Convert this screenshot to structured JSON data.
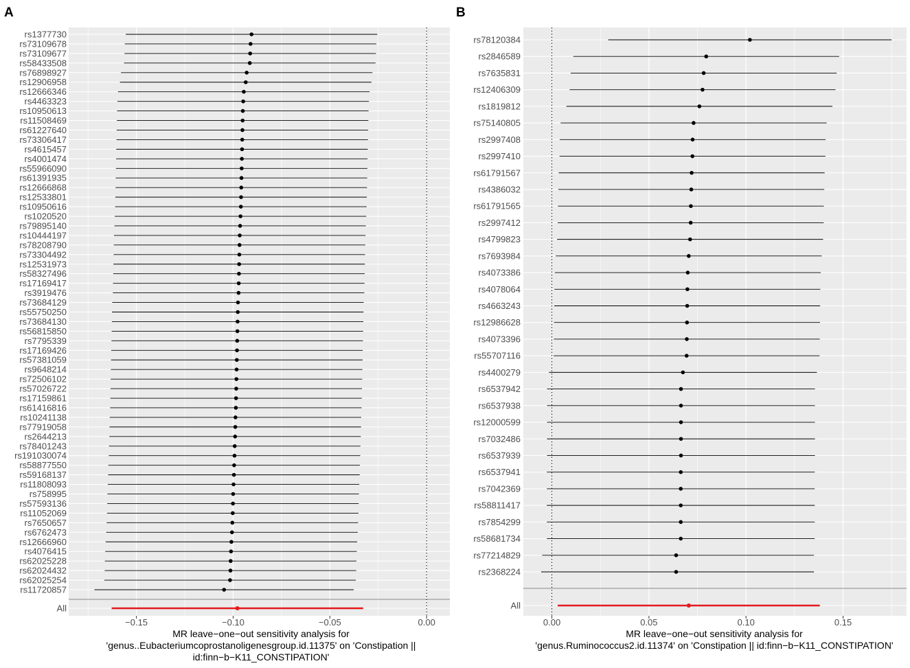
{
  "chart_data": [
    {
      "panel": "A",
      "type": "scatter",
      "xlabel": [
        "MR leave−one−out sensitivity analysis for",
        "'genus..Eubacteriumcoprostanoligenesgroup.id.11375' on 'Constipation ||",
        "id:finn−b−K11_CONSTIPATION'"
      ],
      "xlim": [
        -0.185,
        0.012
      ],
      "xticks": [
        -0.15,
        -0.1,
        -0.05,
        0.0
      ],
      "xtick_labels": [
        "−0.15",
        "−0.10",
        "−0.05",
        "0.00"
      ],
      "reference_line": 0,
      "grid": true,
      "snps": [
        {
          "label": "rs1377730",
          "est": -0.0905,
          "lo": -0.1555,
          "hi": -0.0255
        },
        {
          "label": "rs73109678",
          "est": -0.091,
          "lo": -0.156,
          "hi": -0.026
        },
        {
          "label": "rs73109677",
          "est": -0.0912,
          "lo": -0.1562,
          "hi": -0.0262
        },
        {
          "label": "rs58433508",
          "est": -0.0914,
          "lo": -0.1564,
          "hi": -0.0264
        },
        {
          "label": "rs76898927",
          "est": -0.093,
          "lo": -0.158,
          "hi": -0.028
        },
        {
          "label": "rs12906958",
          "est": -0.0935,
          "lo": -0.1585,
          "hi": -0.0285
        },
        {
          "label": "rs12666346",
          "est": -0.0945,
          "lo": -0.1595,
          "hi": -0.0295
        },
        {
          "label": "rs4463323",
          "est": -0.0948,
          "lo": -0.1598,
          "hi": -0.0298
        },
        {
          "label": "rs10950613",
          "est": -0.095,
          "lo": -0.16,
          "hi": -0.03
        },
        {
          "label": "rs11508469",
          "est": -0.0951,
          "lo": -0.1601,
          "hi": -0.0301
        },
        {
          "label": "rs61227640",
          "est": -0.0952,
          "lo": -0.1602,
          "hi": -0.0302
        },
        {
          "label": "rs73306417",
          "est": -0.0953,
          "lo": -0.1603,
          "hi": -0.0303
        },
        {
          "label": "rs4615457",
          "est": -0.0954,
          "lo": -0.1604,
          "hi": -0.0304
        },
        {
          "label": "rs4001474",
          "est": -0.0955,
          "lo": -0.1605,
          "hi": -0.0305
        },
        {
          "label": "rs55966090",
          "est": -0.0956,
          "lo": -0.1606,
          "hi": -0.0306
        },
        {
          "label": "rs61391935",
          "est": -0.0957,
          "lo": -0.1607,
          "hi": -0.0307
        },
        {
          "label": "rs12666868",
          "est": -0.0958,
          "lo": -0.1608,
          "hi": -0.0308
        },
        {
          "label": "rs12533801",
          "est": -0.0959,
          "lo": -0.1609,
          "hi": -0.0309
        },
        {
          "label": "rs10950616",
          "est": -0.096,
          "lo": -0.161,
          "hi": -0.031
        },
        {
          "label": "rs1020520",
          "est": -0.0962,
          "lo": -0.1612,
          "hi": -0.0312
        },
        {
          "label": "rs79895140",
          "est": -0.0964,
          "lo": -0.1614,
          "hi": -0.0314
        },
        {
          "label": "rs10444197",
          "est": -0.0966,
          "lo": -0.1616,
          "hi": -0.0316
        },
        {
          "label": "rs78208790",
          "est": -0.0967,
          "lo": -0.1617,
          "hi": -0.0317
        },
        {
          "label": "rs73304492",
          "est": -0.0968,
          "lo": -0.1618,
          "hi": -0.0318
        },
        {
          "label": "rs12531973",
          "est": -0.0969,
          "lo": -0.1619,
          "hi": -0.0319
        },
        {
          "label": "rs58327496",
          "est": -0.097,
          "lo": -0.162,
          "hi": -0.032
        },
        {
          "label": "rs17169417",
          "est": -0.0971,
          "lo": -0.1621,
          "hi": -0.0321
        },
        {
          "label": "rs3919476",
          "est": -0.0972,
          "lo": -0.1622,
          "hi": -0.0322
        },
        {
          "label": "rs73684129",
          "est": -0.0975,
          "lo": -0.1625,
          "hi": -0.0325
        },
        {
          "label": "rs55750250",
          "est": -0.0976,
          "lo": -0.1626,
          "hi": -0.0326
        },
        {
          "label": "rs73684130",
          "est": -0.0977,
          "lo": -0.1627,
          "hi": -0.0327
        },
        {
          "label": "rs56815850",
          "est": -0.0978,
          "lo": -0.1628,
          "hi": -0.0328
        },
        {
          "label": "rs7795339",
          "est": -0.0979,
          "lo": -0.1629,
          "hi": -0.0329
        },
        {
          "label": "rs17169426",
          "est": -0.098,
          "lo": -0.163,
          "hi": -0.033
        },
        {
          "label": "rs57381059",
          "est": -0.0981,
          "lo": -0.1631,
          "hi": -0.0331
        },
        {
          "label": "rs9648214",
          "est": -0.0982,
          "lo": -0.1632,
          "hi": -0.0332
        },
        {
          "label": "rs72506102",
          "est": -0.0983,
          "lo": -0.1633,
          "hi": -0.0333
        },
        {
          "label": "rs57026722",
          "est": -0.0984,
          "lo": -0.1634,
          "hi": -0.0334
        },
        {
          "label": "rs17159861",
          "est": -0.0985,
          "lo": -0.1635,
          "hi": -0.0335
        },
        {
          "label": "rs61416816",
          "est": -0.0986,
          "lo": -0.1636,
          "hi": -0.0336
        },
        {
          "label": "rs10241138",
          "est": -0.0988,
          "lo": -0.1638,
          "hi": -0.0338
        },
        {
          "label": "rs77919058",
          "est": -0.0989,
          "lo": -0.1639,
          "hi": -0.0339
        },
        {
          "label": "rs2644213",
          "est": -0.099,
          "lo": -0.164,
          "hi": -0.034
        },
        {
          "label": "rs78401243",
          "est": -0.0992,
          "lo": -0.1642,
          "hi": -0.0342
        },
        {
          "label": "rs191030074",
          "est": -0.0993,
          "lo": -0.1643,
          "hi": -0.0343
        },
        {
          "label": "rs58877550",
          "est": -0.0995,
          "lo": -0.1645,
          "hi": -0.0345
        },
        {
          "label": "rs59168137",
          "est": -0.0996,
          "lo": -0.1646,
          "hi": -0.0346
        },
        {
          "label": "rs11808093",
          "est": -0.0998,
          "lo": -0.1648,
          "hi": -0.0348
        },
        {
          "label": "rs758995",
          "est": -0.1,
          "lo": -0.165,
          "hi": -0.035
        },
        {
          "label": "rs57593136",
          "est": -0.1001,
          "lo": -0.1651,
          "hi": -0.0351
        },
        {
          "label": "rs11052069",
          "est": -0.1002,
          "lo": -0.1652,
          "hi": -0.0352
        },
        {
          "label": "rs7650657",
          "est": -0.1004,
          "lo": -0.1654,
          "hi": -0.0354
        },
        {
          "label": "rs6762473",
          "est": -0.1006,
          "lo": -0.1656,
          "hi": -0.0356
        },
        {
          "label": "rs12666960",
          "est": -0.1009,
          "lo": -0.1659,
          "hi": -0.0359
        },
        {
          "label": "rs4076415",
          "est": -0.1011,
          "lo": -0.1661,
          "hi": -0.0361
        },
        {
          "label": "rs62025228",
          "est": -0.1013,
          "lo": -0.1663,
          "hi": -0.0363
        },
        {
          "label": "rs62024432",
          "est": -0.1014,
          "lo": -0.1664,
          "hi": -0.0364
        },
        {
          "label": "rs62025254",
          "est": -0.1016,
          "lo": -0.1666,
          "hi": -0.0366
        },
        {
          "label": "rs11720857",
          "est": -0.1047,
          "lo": -0.1717,
          "hi": -0.0377
        }
      ],
      "overall": {
        "label": "All",
        "est": -0.0978,
        "lo": -0.1628,
        "hi": -0.0328
      }
    },
    {
      "panel": "B",
      "type": "scatter",
      "xlabel": [
        "MR leave−one−out sensitivity analysis for",
        "'genus.Ruminococcus2.id.11374' on 'Constipation || id:finn−b−K11_CONSTIPATION'"
      ],
      "xlim": [
        -0.0147,
        0.1827
      ],
      "xticks": [
        0.0,
        0.05,
        0.1,
        0.15
      ],
      "xtick_labels": [
        "0.00",
        "0.05",
        "0.10",
        "0.15"
      ],
      "reference_line": 0,
      "grid": true,
      "snps": [
        {
          "label": "rs78120384",
          "est": 0.102,
          "lo": 0.029,
          "hi": 0.175
        },
        {
          "label": "rs2846589",
          "est": 0.0795,
          "lo": 0.011,
          "hi": 0.148
        },
        {
          "label": "rs7635831",
          "est": 0.0782,
          "lo": 0.0097,
          "hi": 0.1467
        },
        {
          "label": "rs12406309",
          "est": 0.0776,
          "lo": 0.0091,
          "hi": 0.1461
        },
        {
          "label": "rs1819812",
          "est": 0.076,
          "lo": 0.0075,
          "hi": 0.1445
        },
        {
          "label": "rs75140805",
          "est": 0.073,
          "lo": 0.0045,
          "hi": 0.1415
        },
        {
          "label": "rs2997408",
          "est": 0.0725,
          "lo": 0.004,
          "hi": 0.141
        },
        {
          "label": "rs2997410",
          "est": 0.0724,
          "lo": 0.0039,
          "hi": 0.1409
        },
        {
          "label": "rs61791567",
          "est": 0.072,
          "lo": 0.0035,
          "hi": 0.1405
        },
        {
          "label": "rs4386032",
          "est": 0.0718,
          "lo": 0.0033,
          "hi": 0.1403
        },
        {
          "label": "rs61791565",
          "est": 0.0716,
          "lo": 0.0031,
          "hi": 0.1401
        },
        {
          "label": "rs2997412",
          "est": 0.0715,
          "lo": 0.003,
          "hi": 0.14
        },
        {
          "label": "rs4799823",
          "est": 0.0712,
          "lo": 0.0027,
          "hi": 0.1397
        },
        {
          "label": "rs7693984",
          "est": 0.0705,
          "lo": 0.002,
          "hi": 0.139
        },
        {
          "label": "rs4073386",
          "est": 0.07,
          "lo": 0.0015,
          "hi": 0.1385
        },
        {
          "label": "rs4078064",
          "est": 0.0698,
          "lo": 0.0013,
          "hi": 0.1383
        },
        {
          "label": "rs4663243",
          "est": 0.0697,
          "lo": 0.0012,
          "hi": 0.1382
        },
        {
          "label": "rs12986628",
          "est": 0.0696,
          "lo": 0.0011,
          "hi": 0.1381
        },
        {
          "label": "rs4073396",
          "est": 0.0695,
          "lo": 0.001,
          "hi": 0.138
        },
        {
          "label": "rs55707116",
          "est": 0.0694,
          "lo": 0.0009,
          "hi": 0.1379
        },
        {
          "label": "rs4400279",
          "est": 0.0675,
          "lo": -0.0015,
          "hi": 0.1365
        },
        {
          "label": "rs6537942",
          "est": 0.0665,
          "lo": -0.0025,
          "hi": 0.1355
        },
        {
          "label": "rs6537938",
          "est": 0.0665,
          "lo": -0.0025,
          "hi": 0.1355
        },
        {
          "label": "rs12000599",
          "est": 0.0665,
          "lo": -0.0025,
          "hi": 0.1355
        },
        {
          "label": "rs7032486",
          "est": 0.0665,
          "lo": -0.0025,
          "hi": 0.1355
        },
        {
          "label": "rs6537939",
          "est": 0.0665,
          "lo": -0.0025,
          "hi": 0.1355
        },
        {
          "label": "rs6537941",
          "est": 0.0664,
          "lo": -0.0026,
          "hi": 0.1354
        },
        {
          "label": "rs7042369",
          "est": 0.0664,
          "lo": -0.0026,
          "hi": 0.1354
        },
        {
          "label": "rs58811417",
          "est": 0.0664,
          "lo": -0.0026,
          "hi": 0.1354
        },
        {
          "label": "rs7854299",
          "est": 0.0664,
          "lo": -0.0026,
          "hi": 0.1354
        },
        {
          "label": "rs58681734",
          "est": 0.0664,
          "lo": -0.0026,
          "hi": 0.1354
        },
        {
          "label": "rs77214829",
          "est": 0.064,
          "lo": -0.005,
          "hi": 0.135
        },
        {
          "label": "rs2368224",
          "est": 0.064,
          "lo": -0.0055,
          "hi": 0.135
        }
      ],
      "overall": {
        "label": "All",
        "est": 0.0705,
        "lo": 0.003,
        "hi": 0.138
      }
    }
  ]
}
